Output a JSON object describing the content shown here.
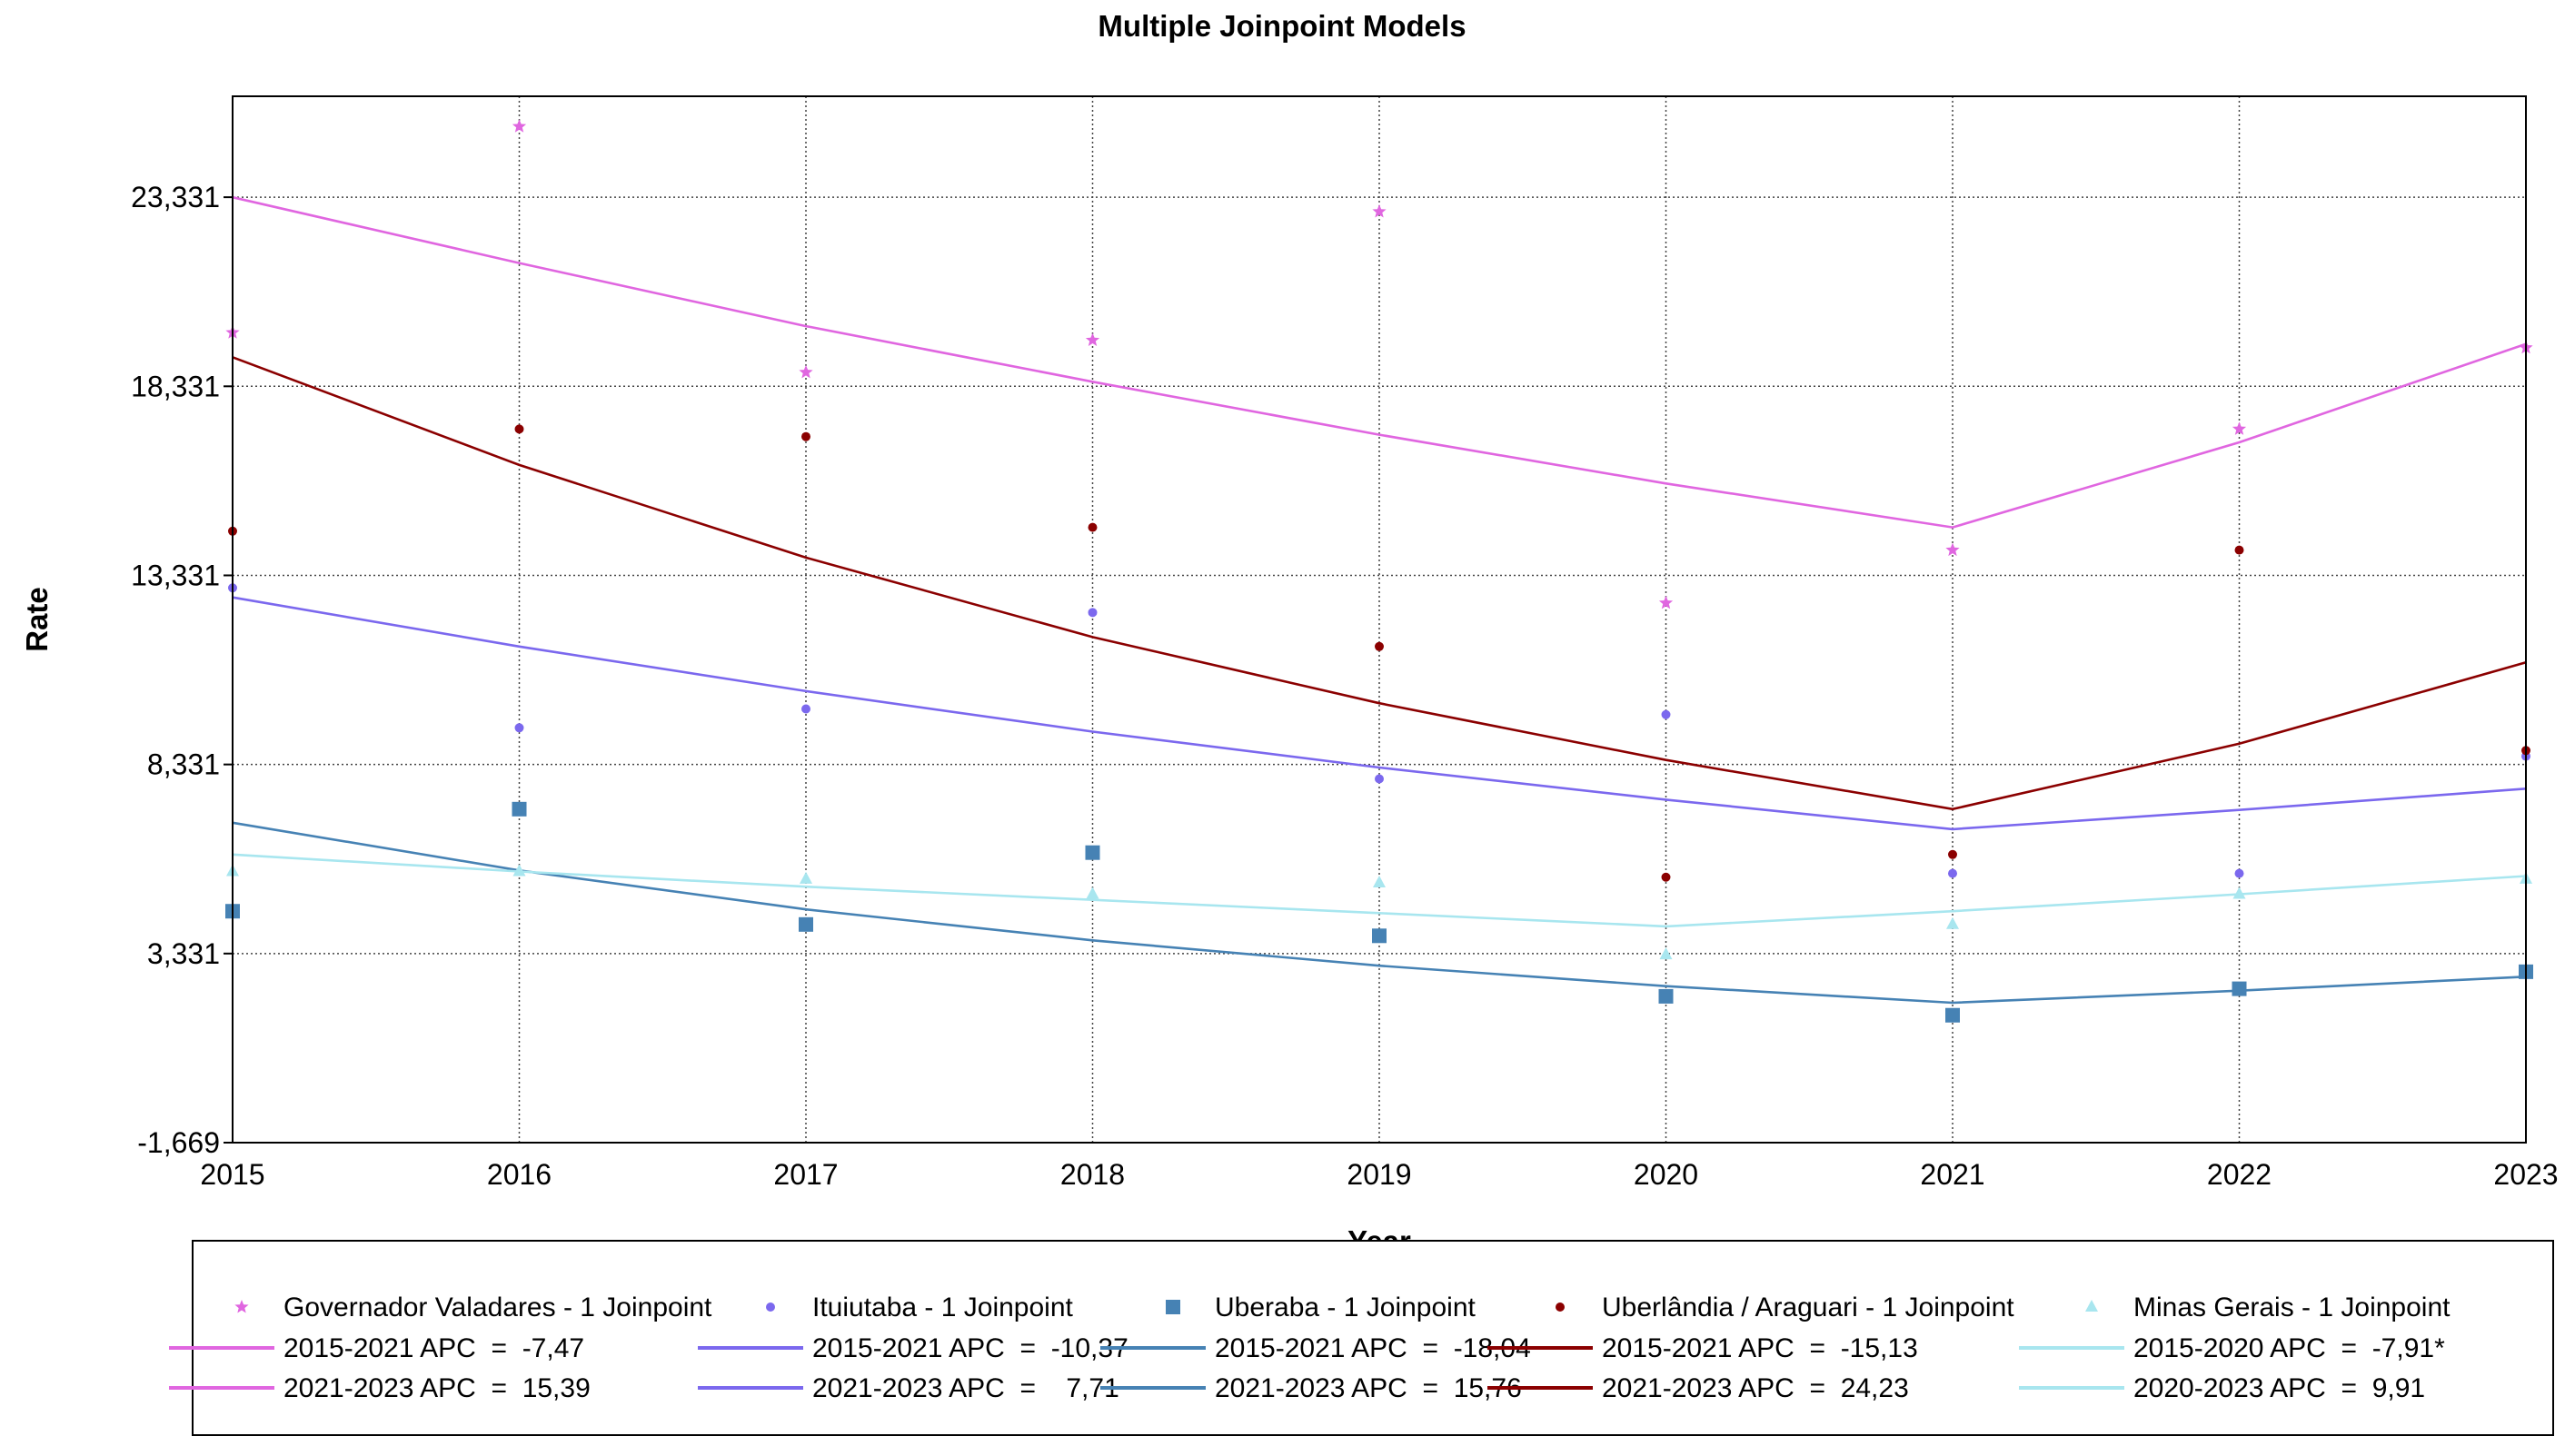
{
  "chart_data": {
    "type": "scatter",
    "title": "Multiple Joinpoint Models",
    "xlabel": "Year",
    "ylabel": "Rate",
    "x": [
      2015,
      2016,
      2017,
      2018,
      2019,
      2020,
      2021,
      2022,
      2023
    ],
    "xlim": [
      2015,
      2023
    ],
    "ylim": [
      -1.669,
      26.0
    ],
    "y_ticks": [
      -1.669,
      3.331,
      8.331,
      13.331,
      18.331,
      23.331
    ],
    "y_tick_labels": [
      "-1,669",
      "3,331",
      "8,331",
      "13,331",
      "18,331",
      "23,331"
    ],
    "x_tick_labels": [
      "2015",
      "2016",
      "2017",
      "2018",
      "2019",
      "2020",
      "2021",
      "2022",
      "2023"
    ],
    "grid": true,
    "legend_position": "bottom",
    "series": [
      {
        "name": "Governador Valadares - 1 Joinpoint",
        "color": "#e066e0",
        "marker": "star",
        "observed": [
          19.75,
          25.2,
          18.7,
          19.55,
          22.95,
          12.6,
          14.0,
          17.2,
          19.35
        ],
        "fit": [
          23.33,
          21.59,
          19.92,
          18.45,
          17.05,
          15.76,
          14.6,
          16.85,
          19.45
        ],
        "segments": [
          {
            "label": "2015-2021 APC  =  -7,47"
          },
          {
            "label": "2021-2023 APC  =  15,39"
          }
        ]
      },
      {
        "name": "Ituiutaba - 1 Joinpoint",
        "color": "#7b68ee",
        "marker": "dot",
        "observed": [
          13.0,
          9.3,
          9.8,
          12.35,
          7.95,
          9.65,
          5.45,
          5.45,
          8.55
        ],
        "fit": [
          12.75,
          11.45,
          10.27,
          9.2,
          8.25,
          7.4,
          6.62,
          7.13,
          7.69
        ],
        "segments": [
          {
            "label": "2015-2021 APC  =  -10,37"
          },
          {
            "label": "2021-2023 APC  =    7,71"
          }
        ]
      },
      {
        "name": "Uberaba - 1 Joinpoint",
        "color": "#4682b4",
        "marker": "square",
        "observed": [
          4.45,
          7.15,
          4.1,
          6.0,
          3.8,
          2.2,
          1.7,
          2.4,
          2.85
        ],
        "fit": [
          6.79,
          5.53,
          4.5,
          3.68,
          3.01,
          2.47,
          2.03,
          2.35,
          2.72
        ],
        "segments": [
          {
            "label": "2015-2021 APC  =  -18,04"
          },
          {
            "label": "2021-2023 APC  =  15,76"
          }
        ]
      },
      {
        "name": "Uberlândia / Araguari - 1 Joinpoint",
        "color": "#8b0000",
        "marker": "dot",
        "observed": [
          14.5,
          17.2,
          17.0,
          14.6,
          11.45,
          5.35,
          5.95,
          14.0,
          8.7
        ],
        "fit": [
          19.1,
          16.25,
          13.8,
          11.7,
          9.95,
          8.45,
          7.15,
          8.88,
          11.03
        ],
        "segments": [
          {
            "label": "2015-2021 APC  =  -15,13"
          },
          {
            "label": "2021-2023 APC  =  24,23"
          }
        ]
      },
      {
        "name": "Minas Gerais - 1 Joinpoint",
        "color": "#a8e6ef",
        "marker": "triangle",
        "observed": [
          5.5,
          5.5,
          5.3,
          4.9,
          5.2,
          3.3,
          4.1,
          4.9,
          5.3
        ],
        "fit": [
          5.95,
          5.5,
          5.1,
          4.75,
          4.4,
          4.05,
          4.45,
          4.9,
          5.38
        ],
        "segments": [
          {
            "label": "2015-2020 APC  =  -7,91*"
          },
          {
            "label": "2020-2023 APC  =  9,91"
          }
        ]
      }
    ]
  }
}
